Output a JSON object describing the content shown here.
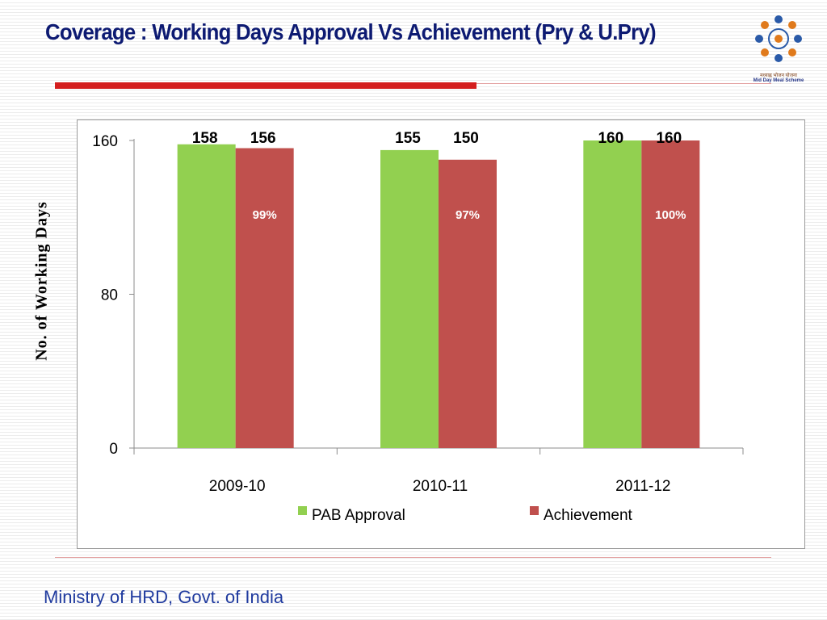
{
  "title": "Coverage : Working Days Approval Vs Achievement (Pry & U.Pry)",
  "footer": "Ministry of HRD, Govt. of India",
  "logo": {
    "icon": "mid-day-meal-scheme-logo",
    "text_hindi": "मध्याह्न भोजन योजना",
    "text_english": "Mid Day Meal Scheme"
  },
  "colors": {
    "title": "#0d1a72",
    "rule": "#d41e1e",
    "pab": "#92d050",
    "achievement": "#c0504d",
    "footer": "#1f3a9e"
  },
  "chart_data": {
    "type": "bar",
    "categories": [
      "2009-10",
      "2010-11",
      "2011-12"
    ],
    "series": [
      {
        "name": "PAB Approval",
        "values": [
          158,
          155,
          160
        ],
        "color": "#92d050"
      },
      {
        "name": "Achievement",
        "values": [
          156,
          150,
          160
        ],
        "color": "#c0504d"
      }
    ],
    "percent_labels": [
      "99%",
      "97%",
      "100%"
    ],
    "ylabel": "No. of Working Days",
    "xlabel": "",
    "ylim": [
      0,
      160
    ],
    "yticks": [
      0,
      80,
      160
    ],
    "grid": false,
    "legend": "bottom"
  }
}
